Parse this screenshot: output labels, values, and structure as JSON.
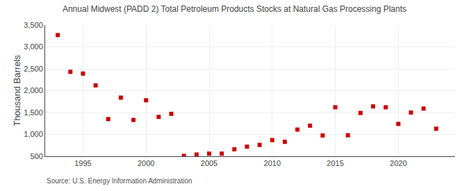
{
  "chart_data": {
    "type": "scatter",
    "title": "Annual Midwest (PADD 2) Total Petroleum Products Stocks at Natural Gas Processing Plants",
    "ylabel": "Thousand Barrels",
    "annotations": [
      "Source: U.S. Energy Information Administration"
    ],
    "x": [
      1993,
      1994,
      1995,
      1996,
      1997,
      1998,
      1999,
      2000,
      2001,
      2002,
      2003,
      2004,
      2005,
      2006,
      2007,
      2008,
      2009,
      2010,
      2011,
      2012,
      2013,
      2014,
      2015,
      2016,
      2017,
      2018,
      2019,
      2020,
      2021,
      2022,
      2023
    ],
    "values": [
      3270,
      2430,
      2390,
      2120,
      1350,
      1840,
      1330,
      1780,
      1400,
      1470,
      510,
      540,
      560,
      560,
      660,
      720,
      760,
      870,
      830,
      1110,
      1200,
      975,
      1620,
      980,
      1490,
      1640,
      1620,
      1240,
      1500,
      1590,
      1130
    ],
    "color": "#cc0000",
    "marker": "square",
    "xlim": [
      1992,
      2024.5
    ],
    "xticks": [
      1995,
      2000,
      2005,
      2010,
      2015,
      2020
    ],
    "ylim": [
      500,
      3500
    ],
    "yticks": [
      500,
      {
        "value": 1000,
        "label": "1,000"
      },
      {
        "value": 1500,
        "label": "1,500"
      },
      {
        "value": 2000,
        "label": "2,000"
      },
      {
        "value": 2500,
        "label": "2,500"
      },
      {
        "value": 3000,
        "label": "3,000"
      },
      {
        "value": 3500,
        "label": "3,500"
      }
    ],
    "grid": true
  }
}
